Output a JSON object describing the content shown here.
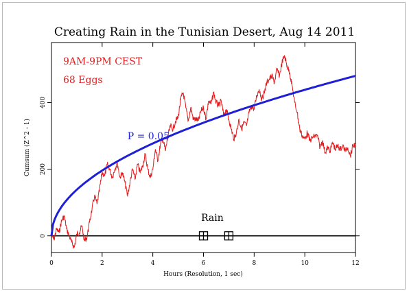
{
  "chart_data": {
    "type": "line",
    "title": "Creating Rain in the Tunisian Desert, Aug 14 2011",
    "xlabel": "Hours (Resolution, 1 sec)",
    "ylabel": "Cumsum (Z^2 - 1)",
    "xlim": [
      0,
      12
    ],
    "ylim": [
      -50,
      580
    ],
    "x_ticks": [
      0,
      2,
      4,
      6,
      8,
      10,
      12
    ],
    "y_ticks": [
      0,
      200,
      400
    ],
    "annotations": [
      "9AM-9PM CEST",
      "68 Eggs"
    ],
    "envelope": {
      "label": "P = 0.05",
      "label_at": [
        3.0,
        290
      ],
      "color": "#1f1fd6",
      "formula": "y = k * sqrt(x)",
      "x": [
        0,
        0.25,
        0.5,
        1,
        2,
        3,
        4,
        5,
        6,
        7,
        8,
        9,
        10,
        11,
        12
      ],
      "y": [
        0,
        69,
        98,
        139,
        196,
        240,
        277,
        310,
        340,
        367,
        392,
        416,
        438,
        460,
        480
      ]
    },
    "series": [
      {
        "color": "#e41a1c",
        "x": [
          0,
          0.1,
          0.2,
          0.3,
          0.4,
          0.5,
          0.6,
          0.7,
          0.8,
          0.9,
          1.0,
          1.1,
          1.2,
          1.3,
          1.4,
          1.5,
          1.6,
          1.7,
          1.8,
          1.9,
          2.0,
          2.1,
          2.2,
          2.3,
          2.4,
          2.5,
          2.6,
          2.7,
          2.8,
          2.9,
          3.0,
          3.1,
          3.2,
          3.3,
          3.4,
          3.5,
          3.6,
          3.7,
          3.8,
          3.9,
          4.0,
          4.1,
          4.2,
          4.3,
          4.4,
          4.5,
          4.6,
          4.7,
          4.8,
          4.9,
          5.0,
          5.1,
          5.2,
          5.3,
          5.4,
          5.5,
          5.6,
          5.7,
          5.8,
          5.9,
          6.0,
          6.1,
          6.2,
          6.3,
          6.4,
          6.5,
          6.6,
          6.7,
          6.8,
          6.9,
          7.0,
          7.1,
          7.2,
          7.3,
          7.4,
          7.5,
          7.6,
          7.7,
          7.8,
          7.9,
          8.0,
          8.1,
          8.2,
          8.3,
          8.4,
          8.5,
          8.6,
          8.7,
          8.8,
          8.9,
          9.0,
          9.1,
          9.2,
          9.3,
          9.4,
          9.5,
          9.6,
          9.7,
          9.8,
          9.9,
          10.0,
          10.1,
          10.2,
          10.3,
          10.4,
          10.5,
          10.6,
          10.7,
          10.8,
          10.9,
          11.0,
          11.1,
          11.2,
          11.3,
          11.4,
          11.5,
          11.6,
          11.7,
          11.8,
          11.9,
          12.0
        ],
        "y": [
          0,
          -10,
          20,
          10,
          45,
          60,
          20,
          0,
          -20,
          -35,
          5,
          10,
          30,
          -15,
          -5,
          40,
          80,
          120,
          95,
          140,
          190,
          180,
          215,
          200,
          175,
          200,
          220,
          175,
          190,
          160,
          120,
          160,
          200,
          170,
          215,
          190,
          210,
          245,
          200,
          175,
          200,
          260,
          225,
          275,
          290,
          255,
          300,
          330,
          320,
          345,
          355,
          410,
          430,
          385,
          345,
          385,
          350,
          350,
          345,
          375,
          385,
          350,
          405,
          395,
          430,
          400,
          390,
          405,
          360,
          380,
          350,
          320,
          290,
          310,
          350,
          320,
          340,
          330,
          370,
          390,
          380,
          420,
          440,
          410,
          430,
          460,
          470,
          480,
          460,
          500,
          480,
          520,
          540,
          510,
          490,
          450,
          400,
          370,
          320,
          300,
          290,
          310,
          285,
          295,
          300,
          300,
          265,
          285,
          250,
          265,
          255,
          280,
          260,
          270,
          260,
          270,
          255,
          265,
          240,
          270,
          275
        ]
      }
    ],
    "events": {
      "label": "Rain",
      "label_at": [
        6.35,
        45
      ],
      "x": [
        6.0,
        7.0
      ],
      "y": 0
    }
  }
}
